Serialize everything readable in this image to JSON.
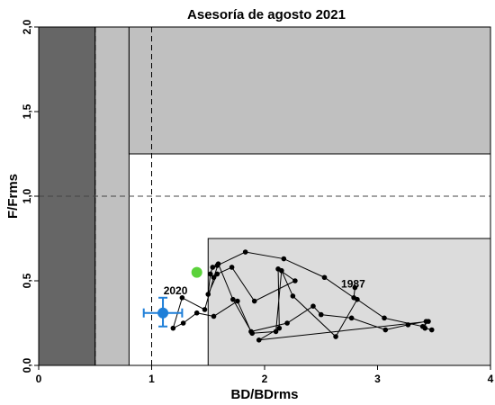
{
  "chart_data": {
    "type": "scatter",
    "title": "Asesoría de agosto 2021",
    "xlabel": "BD/BDrms",
    "ylabel": "F/Frms",
    "xlim": [
      0,
      4
    ],
    "ylim": [
      0,
      2
    ],
    "xticks": [
      "0",
      "1",
      "2",
      "3",
      "4"
    ],
    "yticks": [
      "0,0",
      "0,5",
      "1,0",
      "1,5",
      "2,0"
    ],
    "grid": false,
    "zones": [
      {
        "name": "dark-zone",
        "color": "#666666",
        "x": [
          0,
          0.5
        ],
        "y": [
          0,
          2
        ]
      },
      {
        "name": "mid-zone-left",
        "color": "#c0c0c0",
        "x": [
          0.5,
          0.8
        ],
        "y": [
          0,
          2
        ]
      },
      {
        "name": "mid-zone-top",
        "color": "#c0c0c0",
        "x": [
          0.8,
          4
        ],
        "y": [
          1.25,
          2
        ]
      },
      {
        "name": "light-zone",
        "color": "#dcdcdc",
        "x": [
          1.5,
          4
        ],
        "y": [
          0,
          0.75
        ]
      }
    ],
    "reference_lines": {
      "vertical": [
        0.5,
        1.0
      ],
      "horizontal": [
        1.0
      ]
    },
    "series": [
      {
        "color": "#000000",
        "x": [
          3.48,
          3.42,
          3.43,
          3.27,
          3.07,
          2.77,
          2.5,
          2.43,
          2.2,
          1.88,
          1.76,
          1.55,
          1.4,
          1.28,
          1.19,
          1.27,
          1.47,
          1.55,
          1.59,
          1.72,
          1.89,
          2.1,
          2.15,
          2.25,
          2.63,
          2.82,
          3.06,
          3.4,
          3.45,
          1.95,
          2.13,
          2.12,
          2.27,
          1.91,
          1.71,
          1.58,
          1.5,
          1.52,
          1.54,
          1.58,
          1.83,
          2.17,
          2.53,
          2.79,
          2.8
        ],
        "y": [
          0.21,
          0.22,
          0.26,
          0.24,
          0.21,
          0.28,
          0.3,
          0.35,
          0.25,
          0.2,
          0.38,
          0.29,
          0.31,
          0.25,
          0.22,
          0.4,
          0.33,
          0.52,
          0.6,
          0.39,
          0.19,
          0.2,
          0.56,
          0.41,
          0.17,
          0.39,
          0.28,
          0.23,
          0.26,
          0.15,
          0.22,
          0.57,
          0.5,
          0.38,
          0.58,
          0.54,
          0.42,
          0.54,
          0.58,
          0.59,
          0.67,
          0.63,
          0.52,
          0.4,
          0.46
        ],
        "start_label": "1987"
      }
    ],
    "current": {
      "label": "2020",
      "x": 1.1,
      "y": 0.31,
      "xerr": [
        0.93,
        1.27
      ],
      "yerr": [
        0.23,
        0.4
      ],
      "color": "#1f7fd8"
    },
    "start_point": {
      "x": 1.4,
      "y": 0.55,
      "color": "#5bd23b"
    }
  }
}
